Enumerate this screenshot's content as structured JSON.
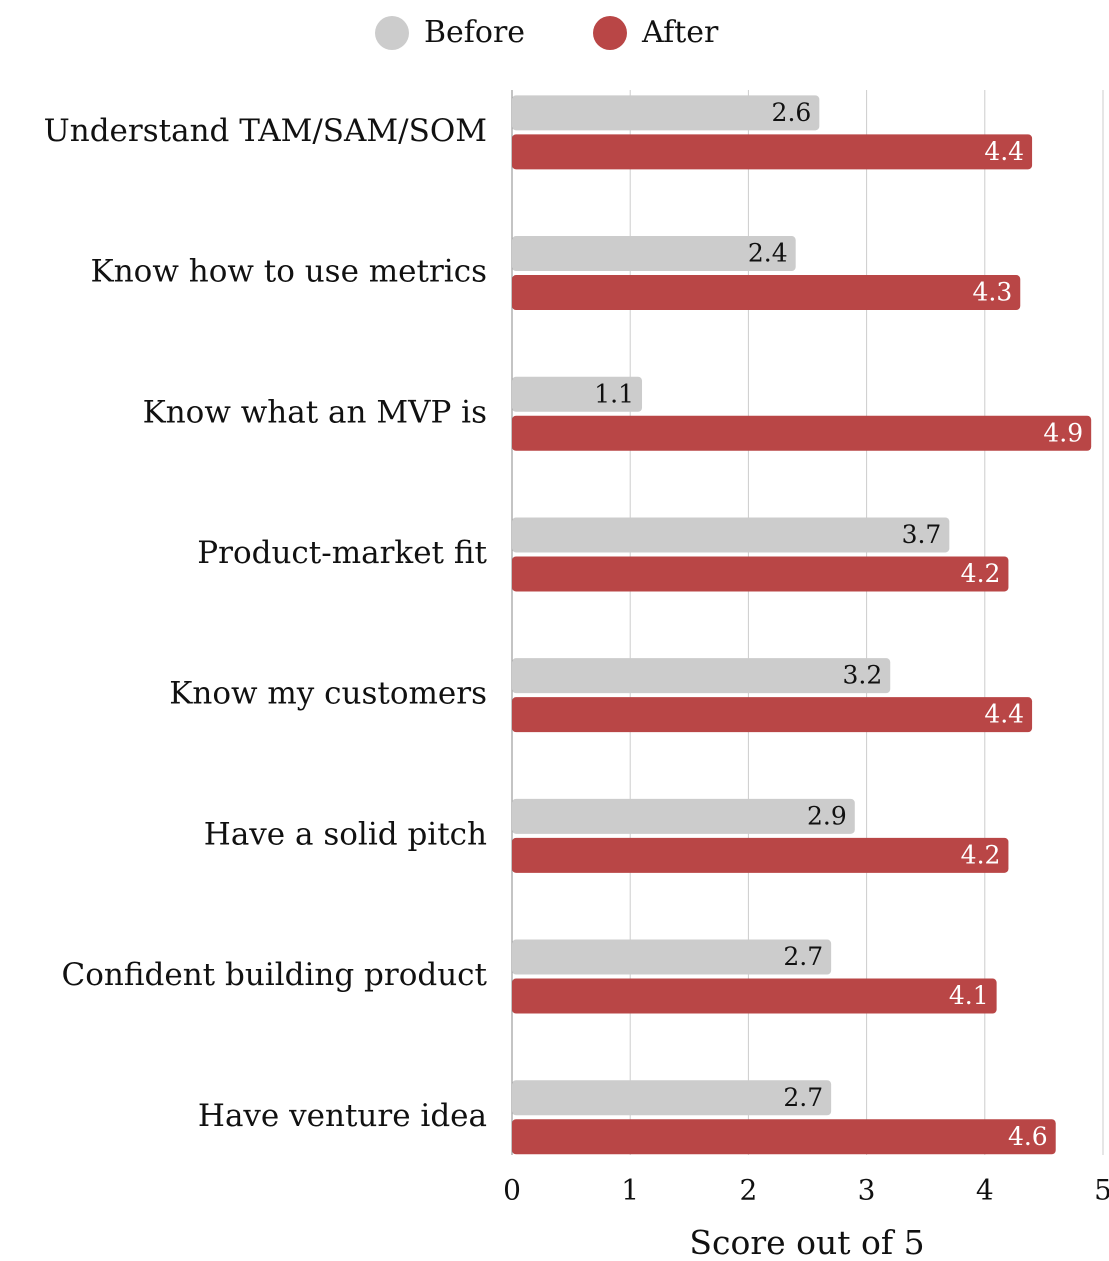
{
  "chart_data": {
    "type": "bar",
    "orientation": "horizontal",
    "categories": [
      "Understand TAM/SAM/SOM",
      "Know how to use metrics",
      "Know what an MVP is",
      "Product-market fit",
      "Know my customers",
      "Have a solid pitch",
      "Confident building product",
      "Have venture idea"
    ],
    "series": [
      {
        "name": "Before",
        "color": "#cccccc",
        "values": [
          2.6,
          2.4,
          1.1,
          3.7,
          3.2,
          2.9,
          2.7,
          2.7
        ]
      },
      {
        "name": "After",
        "color": "#b94646",
        "values": [
          4.4,
          4.3,
          4.9,
          4.2,
          4.4,
          4.2,
          4.1,
          4.6
        ]
      }
    ],
    "xlabel": "Score out of 5",
    "xlim": [
      0,
      5
    ],
    "xticks": [
      0,
      1,
      2,
      3,
      4,
      5
    ],
    "grid": true,
    "legend": "top"
  }
}
